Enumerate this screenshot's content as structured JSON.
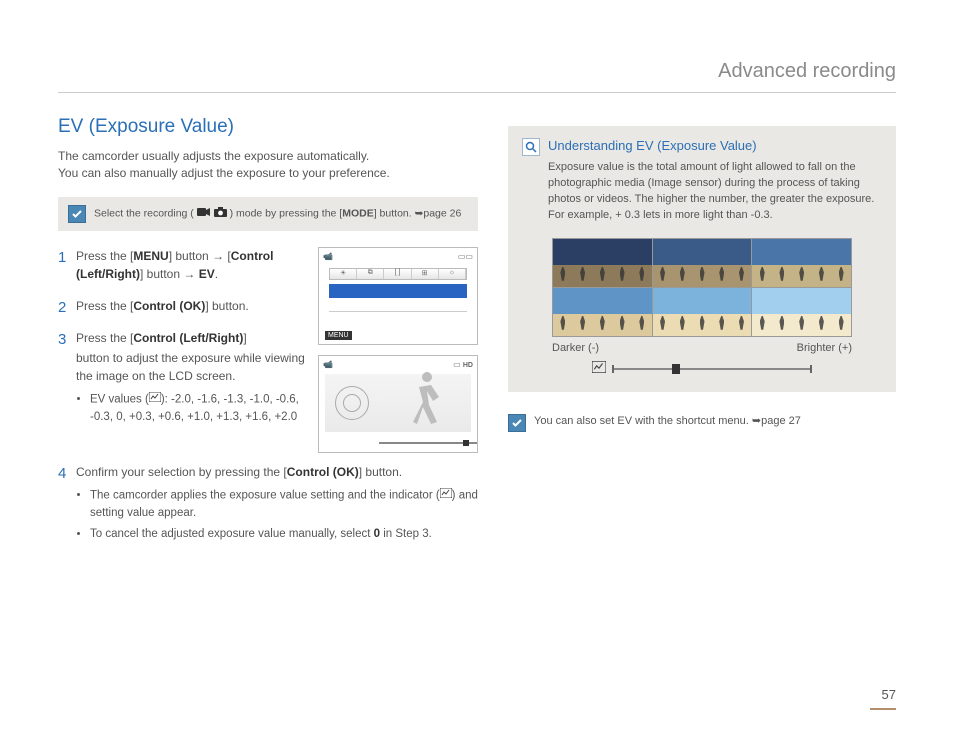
{
  "chapter_title": "Advanced recording",
  "section_title": "EV (Exposure Value)",
  "intro_line1": "The camcorder usually adjusts the exposure automatically.",
  "intro_line2": "You can also manually adjust the exposure to your preference.",
  "mode_note_pre": "Select the recording (",
  "mode_note_post": ") mode by pressing the [",
  "mode_note_btn": "MODE",
  "mode_note_end": "] button. ➥page 26",
  "steps": {
    "s1_a": "Press the [",
    "s1_b": "MENU",
    "s1_c": "] button → [",
    "s1_d": "Control (Left/Right)",
    "s1_e": "] button → ",
    "s1_f": "EV",
    "s1_g": ".",
    "s2_a": "Press the [",
    "s2_b": "Control (OK)",
    "s2_c": "] button.",
    "s3_a": "Press the [",
    "s3_b": "Control (Left/Right)",
    "s3_c": "]",
    "s3_body": "button to adjust the exposure while viewing the image on the LCD screen.",
    "s3_values_label": "EV values (",
    "s3_values": "): -2.0, -1.6, -1.3, -1.0, -0.6, -0.3, 0, +0.3, +0.6, +1.0, +1.3, +1.6, +2.0",
    "s4_a": "Confirm your selection by pressing the [",
    "s4_b": "Control (OK)",
    "s4_c": "] button.",
    "s4_sub1_a": "The camcorder applies the exposure value setting and the indicator (",
    "s4_sub1_b": ") and setting value appear.",
    "s4_sub2_a": "To cancel the adjusted exposure value manually, select ",
    "s4_sub2_b": "0",
    "s4_sub2_c": " in Step 3."
  },
  "info": {
    "title": "Understanding EV (Exposure Value)",
    "body": "Exposure value is the total amount of light allowed to fall on the photographic media (Image sensor) during the process of taking photos or videos. The higher the number, the greater the exposure. For example, + 0.3 lets in more light than -0.3.",
    "darker": "Darker (-)",
    "brighter": "Brighter (+)"
  },
  "tip_text": "You can also set EV with the shortcut menu. ➥page 27",
  "page_number": "57",
  "lcd1": {
    "menu_label": "MENU",
    "hd": "HD"
  },
  "ev_gallery": {
    "sky_colors": [
      "#2a3f63",
      "#3a5a88",
      "#4a75a8",
      "#5f95c6",
      "#7bb3dd",
      "#a2cfee"
    ],
    "beach_colors": [
      "#8c7a5a",
      "#a8956f",
      "#c5b388",
      "#dcc99d",
      "#ecdcb4",
      "#f3e9cc"
    ]
  }
}
